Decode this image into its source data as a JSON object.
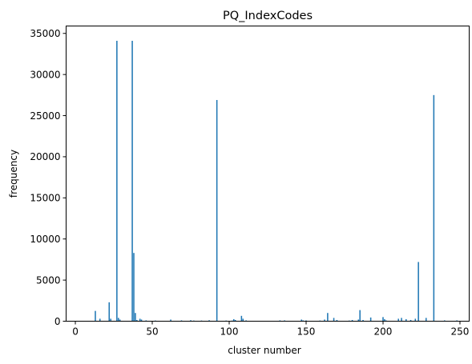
{
  "chart_data": {
    "type": "bar",
    "title": "PQ_IndexCodes",
    "xlabel": "cluster number",
    "ylabel": "frequency",
    "xlim": [
      -6,
      256
    ],
    "ylim": [
      0,
      35900
    ],
    "xticks": [
      0,
      50,
      100,
      150,
      200,
      250
    ],
    "yticks": [
      0,
      5000,
      10000,
      15000,
      20000,
      25000,
      30000,
      35000
    ],
    "grid": false,
    "bar_color": "#1f77b4",
    "x": [
      13,
      16,
      22,
      23,
      27,
      28,
      29,
      37,
      38,
      39,
      40,
      42,
      43,
      46,
      52,
      62,
      69,
      75,
      77,
      82,
      87,
      92,
      98,
      102,
      103,
      104,
      108,
      109,
      111,
      133,
      136,
      147,
      148,
      150,
      159,
      162,
      164,
      168,
      170,
      178,
      180,
      184,
      185,
      187,
      192,
      200,
      201,
      202,
      210,
      212,
      215,
      218,
      221,
      223,
      228,
      233,
      240,
      248
    ],
    "values": [
      1250,
      300,
      2300,
      300,
      34100,
      400,
      200,
      34100,
      8300,
      1000,
      150,
      300,
      200,
      100,
      80,
      200,
      100,
      120,
      80,
      80,
      120,
      26900,
      80,
      80,
      250,
      150,
      650,
      300,
      100,
      100,
      100,
      200,
      100,
      100,
      80,
      200,
      1000,
      400,
      150,
      80,
      150,
      200,
      1350,
      150,
      450,
      500,
      250,
      100,
      300,
      400,
      250,
      150,
      300,
      7200,
      400,
      27500,
      100,
      100
    ]
  }
}
